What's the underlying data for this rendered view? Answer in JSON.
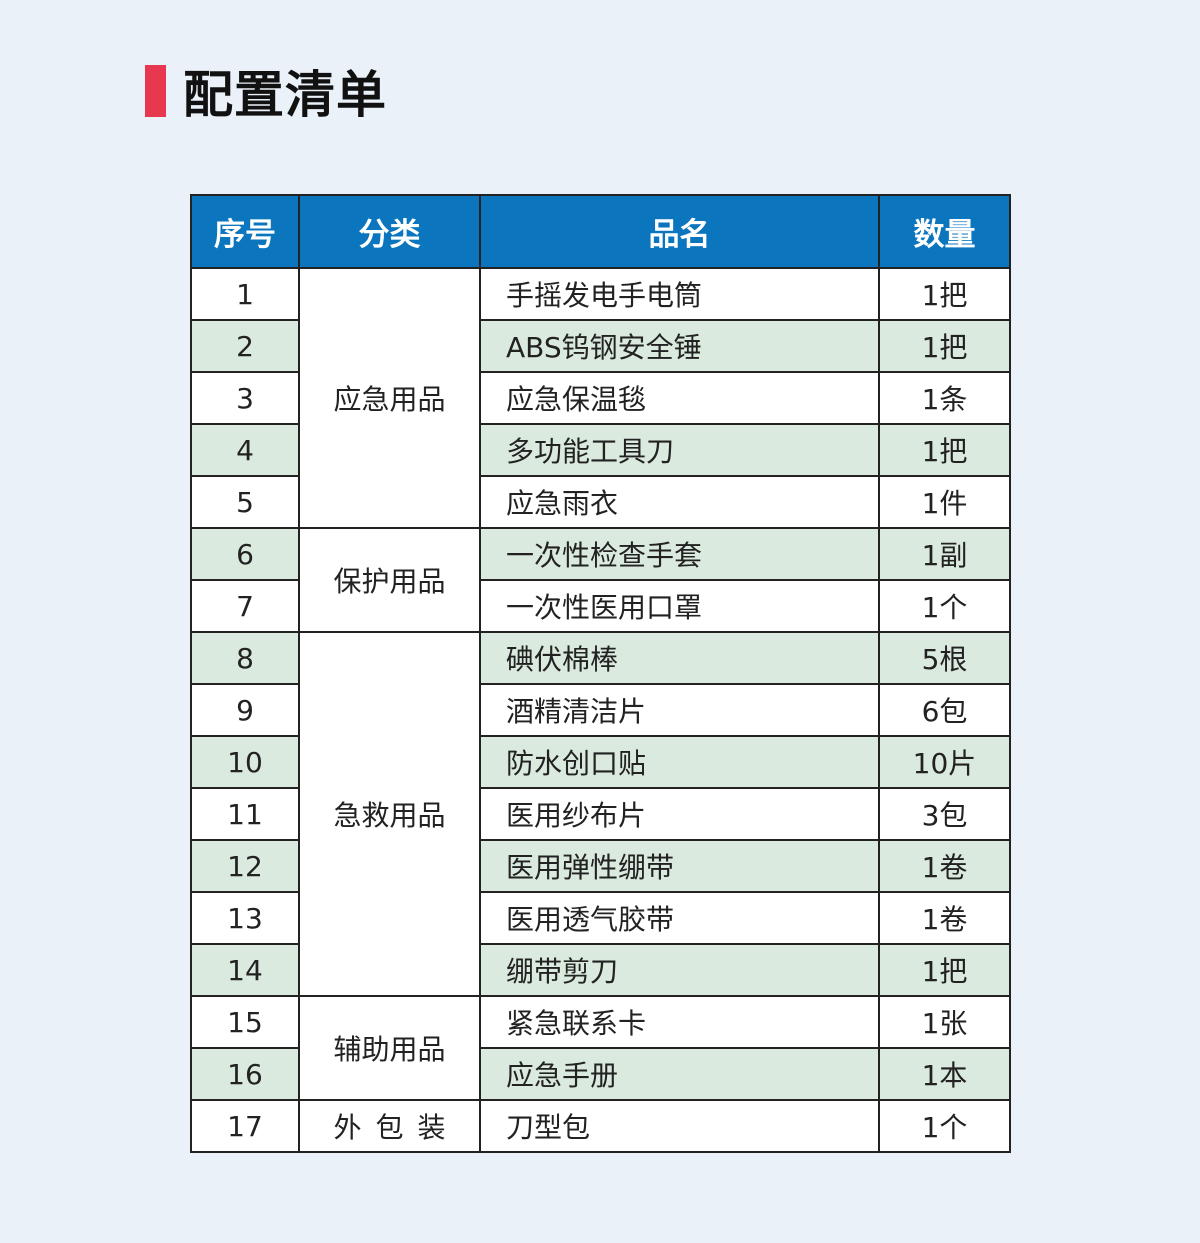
{
  "title": "配置清单",
  "colors": {
    "accent": "#e8384f",
    "header": "#0b76bd",
    "stripe": "#dbeadf",
    "background": "#eaf1f8"
  },
  "headers": [
    "序号",
    "分类",
    "品名",
    "数量"
  ],
  "categories": [
    {
      "label": "应急用品",
      "rows": 5
    },
    {
      "label": "保护用品",
      "rows": 2
    },
    {
      "label": "急救用品",
      "rows": 7
    },
    {
      "label": "辅助用品",
      "rows": 2
    },
    {
      "label": "外包装",
      "rows": 1
    }
  ],
  "rows": [
    {
      "no": "1",
      "name": "手摇发电手电筒",
      "qty": "1把"
    },
    {
      "no": "2",
      "name": "ABS钨钢安全锤",
      "qty": "1把"
    },
    {
      "no": "3",
      "name": "应急保温毯",
      "qty": "1条"
    },
    {
      "no": "4",
      "name": "多功能工具刀",
      "qty": "1把"
    },
    {
      "no": "5",
      "name": "应急雨衣",
      "qty": "1件"
    },
    {
      "no": "6",
      "name": "一次性检查手套",
      "qty": "1副"
    },
    {
      "no": "7",
      "name": "一次性医用口罩",
      "qty": "1个"
    },
    {
      "no": "8",
      "name": "碘伏棉棒",
      "qty": "5根"
    },
    {
      "no": "9",
      "name": "酒精清洁片",
      "qty": "6包"
    },
    {
      "no": "10",
      "name": "防水创口贴",
      "qty": "10片"
    },
    {
      "no": "11",
      "name": "医用纱布片",
      "qty": "3包"
    },
    {
      "no": "12",
      "name": "医用弹性绷带",
      "qty": "1卷"
    },
    {
      "no": "13",
      "name": "医用透气胶带",
      "qty": "1卷"
    },
    {
      "no": "14",
      "name": "绷带剪刀",
      "qty": "1把"
    },
    {
      "no": "15",
      "name": "紧急联系卡",
      "qty": "1张"
    },
    {
      "no": "16",
      "name": "应急手册",
      "qty": "1本"
    },
    {
      "no": "17",
      "name": "刀型包",
      "qty": "1个"
    }
  ]
}
